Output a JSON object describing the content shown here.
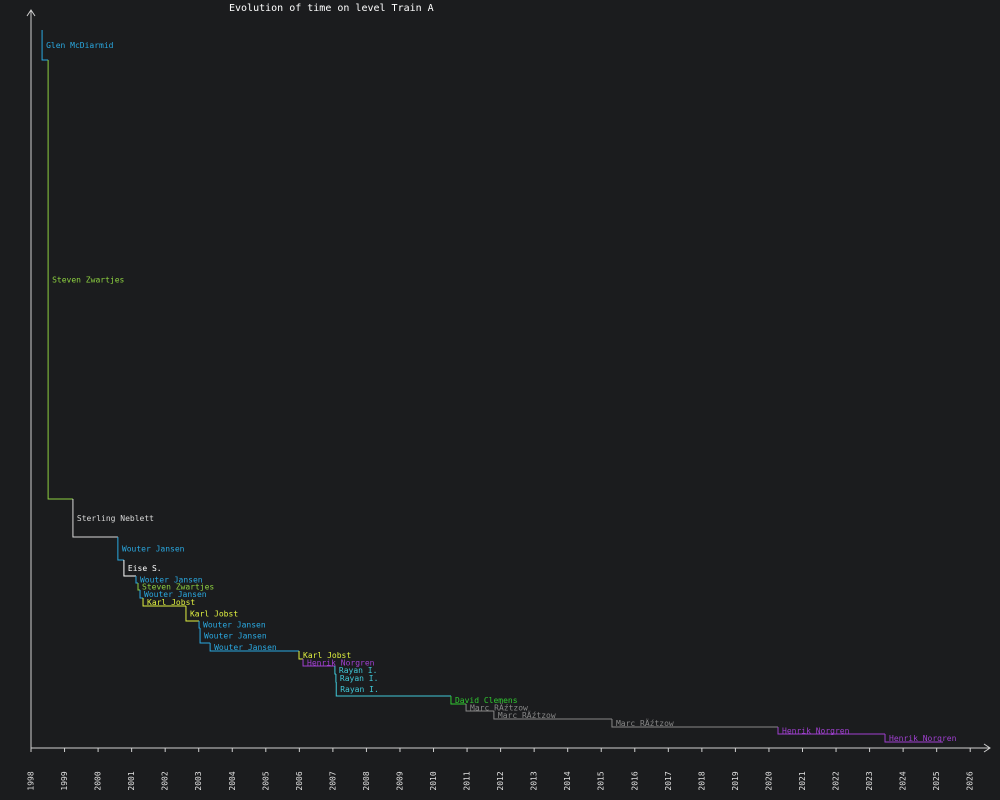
{
  "chart_data": {
    "type": "step",
    "title": "Evolution of time on level Train A",
    "x": [
      1998.33,
      1998.51,
      1999.25,
      2000.59,
      2000.77,
      2001.13,
      2001.19,
      2001.25,
      2001.34,
      2002.62,
      2003.01,
      2003.04,
      2003.34,
      2005.99,
      2006.11,
      2007.06,
      2007.09,
      2007.1,
      2010.52,
      2010.97,
      2011.8,
      2015.32,
      2020.27,
      2023.46
    ],
    "values": [
      688,
      249,
      211,
      188,
      172,
      165,
      158,
      150,
      142,
      127,
      120,
      105,
      97,
      89,
      82,
      74,
      66,
      52,
      44,
      37,
      29,
      21,
      14,
      6
    ],
    "labels": [
      "Glen McDiarmid",
      "Steven Zwartjes",
      "Sterling Neblett",
      "Wouter Jansen",
      "Eise S.",
      "Wouter Jansen",
      "Steven Zwartjes",
      "Wouter Jansen",
      "Karl Jobst",
      "Karl Jobst",
      "Wouter Jansen",
      "Wouter Jansen",
      "Wouter Jansen",
      "Karl Jobst",
      "Henrik Norgren",
      "Rayan I.",
      "Rayan I.",
      "Rayan I.",
      "David Clemens",
      "Marc RÄźtzow",
      "Marc RÄźtzow",
      "Marc RÄźtzow",
      "Henrik Norgren",
      "Henrik Norgren"
    ],
    "colors": [
      "#2aa8e0",
      "#8ccf40",
      "#d8d8d8",
      "#2aa8e0",
      "#ffffff",
      "#2aa8e0",
      "#8ccf40",
      "#2aa8e0",
      "#e0f040",
      "#e0f040",
      "#2aa8e0",
      "#2aa8e0",
      "#2aa8e0",
      "#e0f040",
      "#a040d0",
      "#40c8d8",
      "#40c8d8",
      "#40c8d8",
      "#30c830",
      "#888888",
      "#888888",
      "#888888",
      "#a040d0",
      "#a040d0"
    ],
    "start_value": 718,
    "end_x": 2025.19,
    "xlim": [
      1998,
      2026.59
    ],
    "ylim": [
      0,
      738
    ],
    "xticks": [
      1998,
      1999,
      2000,
      2001,
      2002,
      2003,
      2004,
      2005,
      2006,
      2007,
      2008,
      2009,
      2010,
      2011,
      2012,
      2013,
      2014,
      2015,
      2016,
      2017,
      2018,
      2019,
      2020,
      2021,
      2022,
      2023,
      2024,
      2025,
      2026
    ]
  }
}
